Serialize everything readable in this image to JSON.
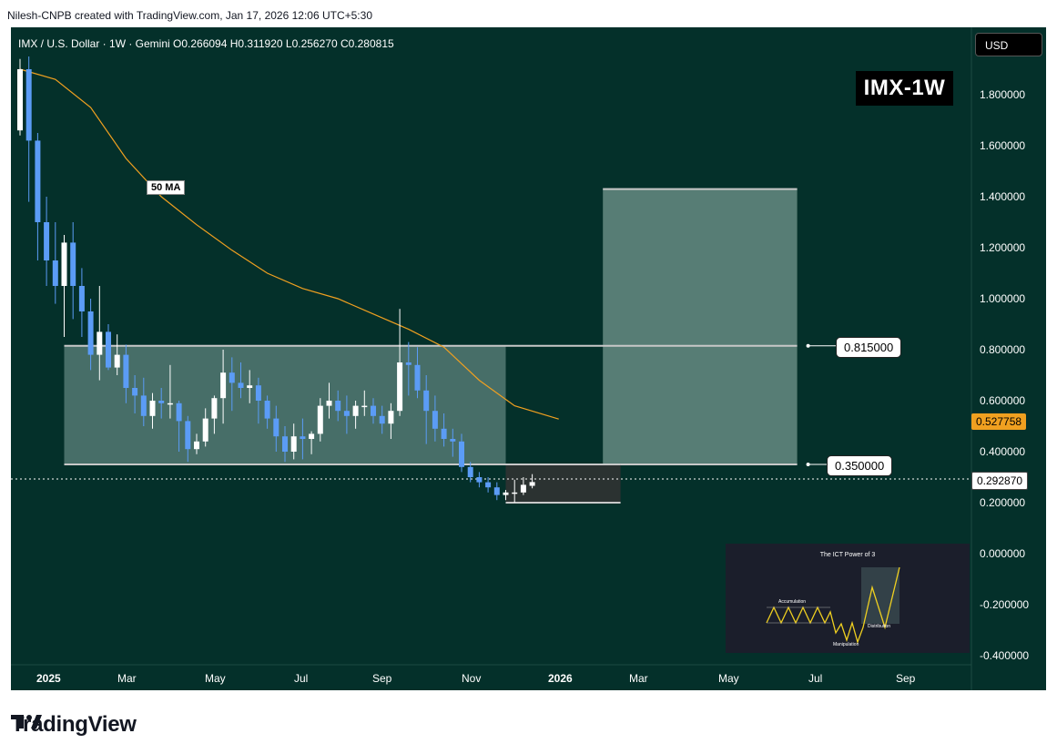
{
  "header": {
    "caption": "Nilesh-CNPB created with TradingView.com, Jan 17, 2026 12:06 UTC+5:30"
  },
  "legend": {
    "ohlc_text": "IMX / U.S. Dollar · 1W · Gemini  O0.266094  H0.311920  L0.256270  C0.280815"
  },
  "currency_button": "USD",
  "ticker_label": "IMX-1W",
  "ma_label": "50 MA",
  "colors": {
    "background": "#04302a",
    "up_candle": "#ffffff",
    "down_candle": "#5b9cf6",
    "ma_line": "#f0a020",
    "range_box": "#7fa39b",
    "target_box": "#8fb0a8",
    "dark_box": "#333333",
    "ma_tag": "#f0a020"
  },
  "price_axis": {
    "ticks": [
      "1.800000",
      "1.600000",
      "1.400000",
      "1.200000",
      "1.000000",
      "0.800000",
      "0.600000",
      "0.400000",
      "0.200000",
      "0.000000",
      "-0.200000",
      "-0.400000"
    ],
    "current_price": "0.292870",
    "ma_price": "0.527758"
  },
  "time_axis": {
    "ticks": [
      "2025",
      "Mar",
      "May",
      "Jul",
      "Sep",
      "Nov",
      "2026",
      "Mar",
      "May",
      "Jul",
      "Sep"
    ]
  },
  "levels": {
    "upper": "0.815000",
    "lower": "0.350000"
  },
  "inset": {
    "title": "The ICT Power of 3",
    "labels": [
      "Accumulation",
      "Manipulation",
      "Distribution"
    ]
  },
  "footer": {
    "brand": "TradingView"
  },
  "chart_data": {
    "type": "candlestick",
    "title": "IMX / U.S. Dollar · 1W · Gemini",
    "ylim": [
      -0.4,
      2.0
    ],
    "y_ticks": [
      1.8,
      1.6,
      1.4,
      1.2,
      1.0,
      0.8,
      0.6,
      0.4,
      0.2,
      0.0,
      -0.2,
      -0.4
    ],
    "x_ticks": [
      "2025",
      "Mar",
      "May",
      "Jul",
      "Sep",
      "Nov",
      "2026",
      "Mar",
      "May",
      "Jul",
      "Sep"
    ],
    "current_price": 0.29287,
    "last_ohlc": {
      "open": 0.266094,
      "high": 0.31192,
      "low": 0.25627,
      "close": 0.280815
    },
    "ma_period": 50,
    "ma_last_value": 0.527758,
    "levels": [
      0.815,
      0.35
    ],
    "candles": [
      {
        "o": 1.66,
        "h": 1.94,
        "l": 1.64,
        "c": 1.9
      },
      {
        "o": 1.9,
        "h": 1.95,
        "l": 1.38,
        "c": 1.62
      },
      {
        "o": 1.62,
        "h": 1.65,
        "l": 1.15,
        "c": 1.3
      },
      {
        "o": 1.3,
        "h": 1.4,
        "l": 1.05,
        "c": 1.15
      },
      {
        "o": 1.15,
        "h": 1.3,
        "l": 0.98,
        "c": 1.05
      },
      {
        "o": 1.05,
        "h": 1.25,
        "l": 0.85,
        "c": 1.22
      },
      {
        "o": 1.22,
        "h": 1.3,
        "l": 0.92,
        "c": 1.05
      },
      {
        "o": 1.05,
        "h": 1.12,
        "l": 0.85,
        "c": 0.95
      },
      {
        "o": 0.95,
        "h": 1.0,
        "l": 0.72,
        "c": 0.78
      },
      {
        "o": 0.78,
        "h": 1.05,
        "l": 0.68,
        "c": 0.87
      },
      {
        "o": 0.87,
        "h": 0.9,
        "l": 0.72,
        "c": 0.73
      },
      {
        "o": 0.73,
        "h": 0.86,
        "l": 0.7,
        "c": 0.78
      },
      {
        "o": 0.78,
        "h": 0.82,
        "l": 0.59,
        "c": 0.65
      },
      {
        "o": 0.65,
        "h": 0.7,
        "l": 0.55,
        "c": 0.62
      },
      {
        "o": 0.62,
        "h": 0.69,
        "l": 0.5,
        "c": 0.54
      },
      {
        "o": 0.54,
        "h": 0.63,
        "l": 0.49,
        "c": 0.6
      },
      {
        "o": 0.6,
        "h": 0.65,
        "l": 0.53,
        "c": 0.59
      },
      {
        "o": 0.59,
        "h": 0.74,
        "l": 0.53,
        "c": 0.59
      },
      {
        "o": 0.59,
        "h": 0.6,
        "l": 0.4,
        "c": 0.52
      },
      {
        "o": 0.52,
        "h": 0.54,
        "l": 0.36,
        "c": 0.41
      },
      {
        "o": 0.41,
        "h": 0.47,
        "l": 0.39,
        "c": 0.44
      },
      {
        "o": 0.44,
        "h": 0.57,
        "l": 0.42,
        "c": 0.53
      },
      {
        "o": 0.53,
        "h": 0.62,
        "l": 0.47,
        "c": 0.61
      },
      {
        "o": 0.61,
        "h": 0.8,
        "l": 0.51,
        "c": 0.71
      },
      {
        "o": 0.71,
        "h": 0.77,
        "l": 0.56,
        "c": 0.67
      },
      {
        "o": 0.67,
        "h": 0.75,
        "l": 0.61,
        "c": 0.65
      },
      {
        "o": 0.65,
        "h": 0.72,
        "l": 0.59,
        "c": 0.66
      },
      {
        "o": 0.66,
        "h": 0.69,
        "l": 0.51,
        "c": 0.6
      },
      {
        "o": 0.6,
        "h": 0.62,
        "l": 0.49,
        "c": 0.53
      },
      {
        "o": 0.53,
        "h": 0.58,
        "l": 0.4,
        "c": 0.46
      },
      {
        "o": 0.46,
        "h": 0.5,
        "l": 0.36,
        "c": 0.4
      },
      {
        "o": 0.4,
        "h": 0.51,
        "l": 0.37,
        "c": 0.46
      },
      {
        "o": 0.46,
        "h": 0.53,
        "l": 0.37,
        "c": 0.45
      },
      {
        "o": 0.45,
        "h": 0.48,
        "l": 0.39,
        "c": 0.47
      },
      {
        "o": 0.47,
        "h": 0.61,
        "l": 0.44,
        "c": 0.58
      },
      {
        "o": 0.58,
        "h": 0.67,
        "l": 0.53,
        "c": 0.6
      },
      {
        "o": 0.6,
        "h": 0.64,
        "l": 0.52,
        "c": 0.56
      },
      {
        "o": 0.56,
        "h": 0.62,
        "l": 0.47,
        "c": 0.54
      },
      {
        "o": 0.54,
        "h": 0.6,
        "l": 0.49,
        "c": 0.58
      },
      {
        "o": 0.58,
        "h": 0.64,
        "l": 0.54,
        "c": 0.58
      },
      {
        "o": 0.58,
        "h": 0.61,
        "l": 0.51,
        "c": 0.54
      },
      {
        "o": 0.54,
        "h": 0.58,
        "l": 0.47,
        "c": 0.51
      },
      {
        "o": 0.51,
        "h": 0.59,
        "l": 0.45,
        "c": 0.56
      },
      {
        "o": 0.56,
        "h": 0.96,
        "l": 0.54,
        "c": 0.75
      },
      {
        "o": 0.75,
        "h": 0.83,
        "l": 0.62,
        "c": 0.74
      },
      {
        "o": 0.74,
        "h": 0.81,
        "l": 0.61,
        "c": 0.64
      },
      {
        "o": 0.64,
        "h": 0.7,
        "l": 0.43,
        "c": 0.56
      },
      {
        "o": 0.56,
        "h": 0.62,
        "l": 0.44,
        "c": 0.49
      },
      {
        "o": 0.49,
        "h": 0.55,
        "l": 0.42,
        "c": 0.45
      },
      {
        "o": 0.45,
        "h": 0.49,
        "l": 0.38,
        "c": 0.44
      },
      {
        "o": 0.44,
        "h": 0.47,
        "l": 0.32,
        "c": 0.34
      },
      {
        "o": 0.34,
        "h": 0.36,
        "l": 0.28,
        "c": 0.3
      },
      {
        "o": 0.3,
        "h": 0.32,
        "l": 0.26,
        "c": 0.28
      },
      {
        "o": 0.28,
        "h": 0.3,
        "l": 0.24,
        "c": 0.26
      },
      {
        "o": 0.26,
        "h": 0.28,
        "l": 0.21,
        "c": 0.23
      },
      {
        "o": 0.23,
        "h": 0.25,
        "l": 0.21,
        "c": 0.24
      },
      {
        "o": 0.24,
        "h": 0.29,
        "l": 0.2,
        "c": 0.24
      },
      {
        "o": 0.24,
        "h": 0.3,
        "l": 0.23,
        "c": 0.27
      },
      {
        "o": 0.266094,
        "h": 0.31192,
        "l": 0.25627,
        "c": 0.280815
      }
    ],
    "ma_points": [
      {
        "t": 0,
        "v": 1.9
      },
      {
        "t": 4,
        "v": 1.86
      },
      {
        "t": 8,
        "v": 1.75
      },
      {
        "t": 12,
        "v": 1.55
      },
      {
        "t": 16,
        "v": 1.4
      },
      {
        "t": 20,
        "v": 1.29
      },
      {
        "t": 24,
        "v": 1.19
      },
      {
        "t": 28,
        "v": 1.1
      },
      {
        "t": 32,
        "v": 1.04
      },
      {
        "t": 36,
        "v": 1.0
      },
      {
        "t": 40,
        "v": 0.94
      },
      {
        "t": 44,
        "v": 0.88
      },
      {
        "t": 48,
        "v": 0.81
      },
      {
        "t": 52,
        "v": 0.68
      },
      {
        "t": 56,
        "v": 0.58
      },
      {
        "t": 61,
        "v": 0.528
      }
    ],
    "zones": [
      {
        "name": "range",
        "t_start": 5,
        "t_end": 55,
        "top": 0.815,
        "bottom": 0.35
      },
      {
        "name": "target",
        "t_start": 66,
        "t_end": 88,
        "top": 1.43,
        "bottom": 0.35
      },
      {
        "name": "accumulation",
        "t_start": 55,
        "t_end": 68,
        "top": 0.35,
        "bottom": 0.2
      }
    ]
  }
}
